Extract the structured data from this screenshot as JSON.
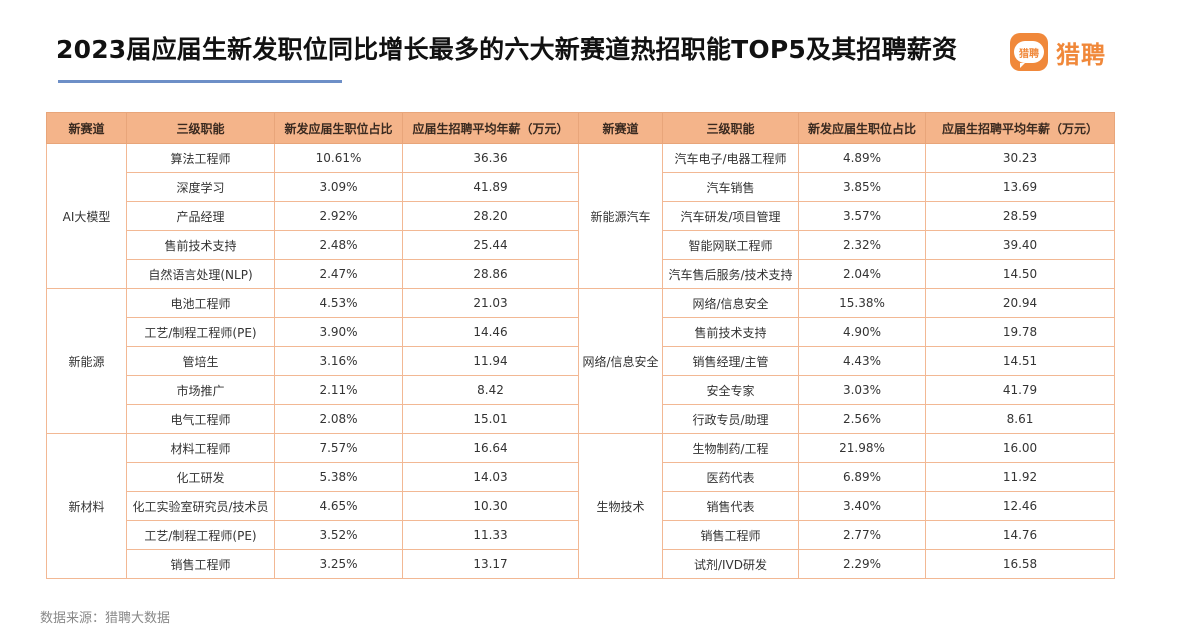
{
  "title": "2023届应届生新发职位同比增长最多的六大新赛道热招职能TOP5及其招聘薪资",
  "logo": {
    "icon_text": "猎聘",
    "text": "猎聘",
    "color": "#f0883a"
  },
  "headers": [
    "新赛道",
    "三级职能",
    "新发应届生职位占比",
    "应届生招聘平均年薪（万元）",
    "新赛道",
    "三级职能",
    "新发应届生职位占比",
    "应届生招聘平均年薪（万元）"
  ],
  "left": [
    {
      "track": "AI大模型",
      "rows": [
        {
          "role": "算法工程师",
          "share": "10.61%",
          "salary": "36.36"
        },
        {
          "role": "深度学习",
          "share": "3.09%",
          "salary": "41.89"
        },
        {
          "role": "产品经理",
          "share": "2.92%",
          "salary": "28.20"
        },
        {
          "role": "售前技术支持",
          "share": "2.48%",
          "salary": "25.44"
        },
        {
          "role": "自然语言处理(NLP)",
          "share": "2.47%",
          "salary": "28.86"
        }
      ]
    },
    {
      "track": "新能源",
      "rows": [
        {
          "role": "电池工程师",
          "share": "4.53%",
          "salary": "21.03"
        },
        {
          "role": "工艺/制程工程师(PE)",
          "share": "3.90%",
          "salary": "14.46"
        },
        {
          "role": "管培生",
          "share": "3.16%",
          "salary": "11.94"
        },
        {
          "role": "市场推广",
          "share": "2.11%",
          "salary": "8.42"
        },
        {
          "role": "电气工程师",
          "share": "2.08%",
          "salary": "15.01"
        }
      ]
    },
    {
      "track": "新材料",
      "rows": [
        {
          "role": "材料工程师",
          "share": "7.57%",
          "salary": "16.64"
        },
        {
          "role": "化工研发",
          "share": "5.38%",
          "salary": "14.03"
        },
        {
          "role": "化工实验室研究员/技术员",
          "share": "4.65%",
          "salary": "10.30"
        },
        {
          "role": "工艺/制程工程师(PE)",
          "share": "3.52%",
          "salary": "11.33"
        },
        {
          "role": "销售工程师",
          "share": "3.25%",
          "salary": "13.17"
        }
      ]
    }
  ],
  "right": [
    {
      "track": "新能源汽车",
      "rows": [
        {
          "role": "汽车电子/电器工程师",
          "share": "4.89%",
          "salary": "30.23"
        },
        {
          "role": "汽车销售",
          "share": "3.85%",
          "salary": "13.69"
        },
        {
          "role": "汽车研发/项目管理",
          "share": "3.57%",
          "salary": "28.59"
        },
        {
          "role": "智能网联工程师",
          "share": "2.32%",
          "salary": "39.40"
        },
        {
          "role": "汽车售后服务/技术支持",
          "share": "2.04%",
          "salary": "14.50"
        }
      ]
    },
    {
      "track": "网络/信息安全",
      "rows": [
        {
          "role": "网络/信息安全",
          "share": "15.38%",
          "salary": "20.94"
        },
        {
          "role": "售前技术支持",
          "share": "4.90%",
          "salary": "19.78"
        },
        {
          "role": "销售经理/主管",
          "share": "4.43%",
          "salary": "14.51"
        },
        {
          "role": "安全专家",
          "share": "3.03%",
          "salary": "41.79"
        },
        {
          "role": "行政专员/助理",
          "share": "2.56%",
          "salary": "8.61"
        }
      ]
    },
    {
      "track": "生物技术",
      "rows": [
        {
          "role": "生物制药/工程",
          "share": "21.98%",
          "salary": "16.00"
        },
        {
          "role": "医药代表",
          "share": "6.89%",
          "salary": "11.92"
        },
        {
          "role": "销售代表",
          "share": "3.40%",
          "salary": "12.46"
        },
        {
          "role": "销售工程师",
          "share": "2.77%",
          "salary": "14.76"
        },
        {
          "role": "试剂/IVD研发",
          "share": "2.29%",
          "salary": "16.58"
        }
      ]
    }
  ],
  "source": "数据来源：猎聘大数据"
}
